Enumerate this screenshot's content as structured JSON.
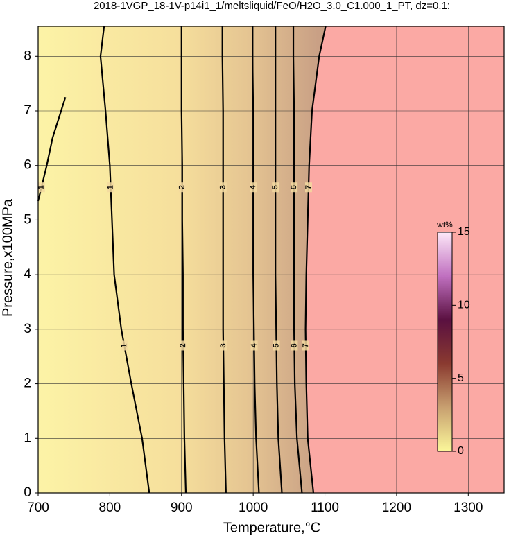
{
  "chart_data": {
    "type": "contour",
    "title": "2018-1VGP_18-1V-p14i1_1/meltsliquid/FeO/H2O_3.0_C1.000_1_PT, dz=0.1:",
    "xlabel": "Temperature,°C",
    "ylabel": "Pressure,x100MPa",
    "xlim": [
      700,
      1350
    ],
    "ylim": [
      0,
      8.55
    ],
    "xticks": [
      700,
      800,
      900,
      1000,
      1100,
      1200,
      1300
    ],
    "yticks": [
      0,
      1,
      2,
      3,
      4,
      5,
      6,
      7,
      8
    ],
    "grid": true,
    "series": [
      {
        "level": 1,
        "x": [
          855,
          845,
          830,
          816,
          806,
          803,
          800,
          794,
          787,
          792
        ],
        "y": [
          0,
          1,
          2,
          3,
          4,
          5,
          6,
          7,
          8,
          8.55
        ]
      },
      {
        "level": 1,
        "x": [
          700,
          712,
          720,
          732,
          738
        ],
        "y": [
          5.35,
          6,
          6.5,
          7,
          7.25
        ]
      },
      {
        "level": 2,
        "x": [
          906,
          904,
          903,
          902,
          902,
          901,
          901,
          900,
          900,
          900
        ],
        "y": [
          0,
          1,
          2,
          3,
          4,
          5,
          6,
          7,
          8,
          8.55
        ]
      },
      {
        "level": 3,
        "x": [
          962,
          960,
          959,
          958,
          958,
          958,
          958,
          958,
          957,
          957
        ],
        "y": [
          0,
          1,
          2,
          3,
          4,
          5,
          6,
          7,
          8,
          8.55
        ]
      },
      {
        "level": 4,
        "x": [
          1008,
          1004,
          1002,
          1001,
          1000,
          1000,
          1000,
          1000,
          999,
          999
        ],
        "y": [
          0,
          1,
          2,
          3,
          4,
          5,
          6,
          7,
          8,
          8.55
        ]
      },
      {
        "level": 5,
        "x": [
          1040,
          1035,
          1033,
          1032,
          1031,
          1031,
          1031,
          1031,
          1031,
          1031
        ],
        "y": [
          0,
          1,
          2,
          3,
          4,
          5,
          6,
          7,
          8,
          8.55
        ]
      },
      {
        "level": 6,
        "x": [
          1068,
          1061,
          1058,
          1057,
          1057,
          1057,
          1057,
          1057,
          1056,
          1056
        ],
        "y": [
          0,
          1,
          2,
          3,
          4,
          5,
          6,
          7,
          8,
          8.55
        ]
      },
      {
        "level": 7,
        "x": [
          1084,
          1076,
          1074,
          1073,
          1074,
          1076,
          1078,
          1082,
          1092,
          1101
        ],
        "y": [
          0,
          1,
          2,
          3,
          4,
          5,
          6,
          7,
          8,
          8.55
        ]
      }
    ],
    "above_color": "#fba9a4",
    "colorbar": {
      "label": "wt%",
      "lim": [
        0,
        15
      ],
      "ticks": [
        0,
        5,
        10,
        15
      ],
      "colors": [
        "#fbf79a",
        "#c8a070",
        "#8a3a30",
        "#5a1040",
        "#c070c0",
        "#fde8f8"
      ]
    }
  }
}
